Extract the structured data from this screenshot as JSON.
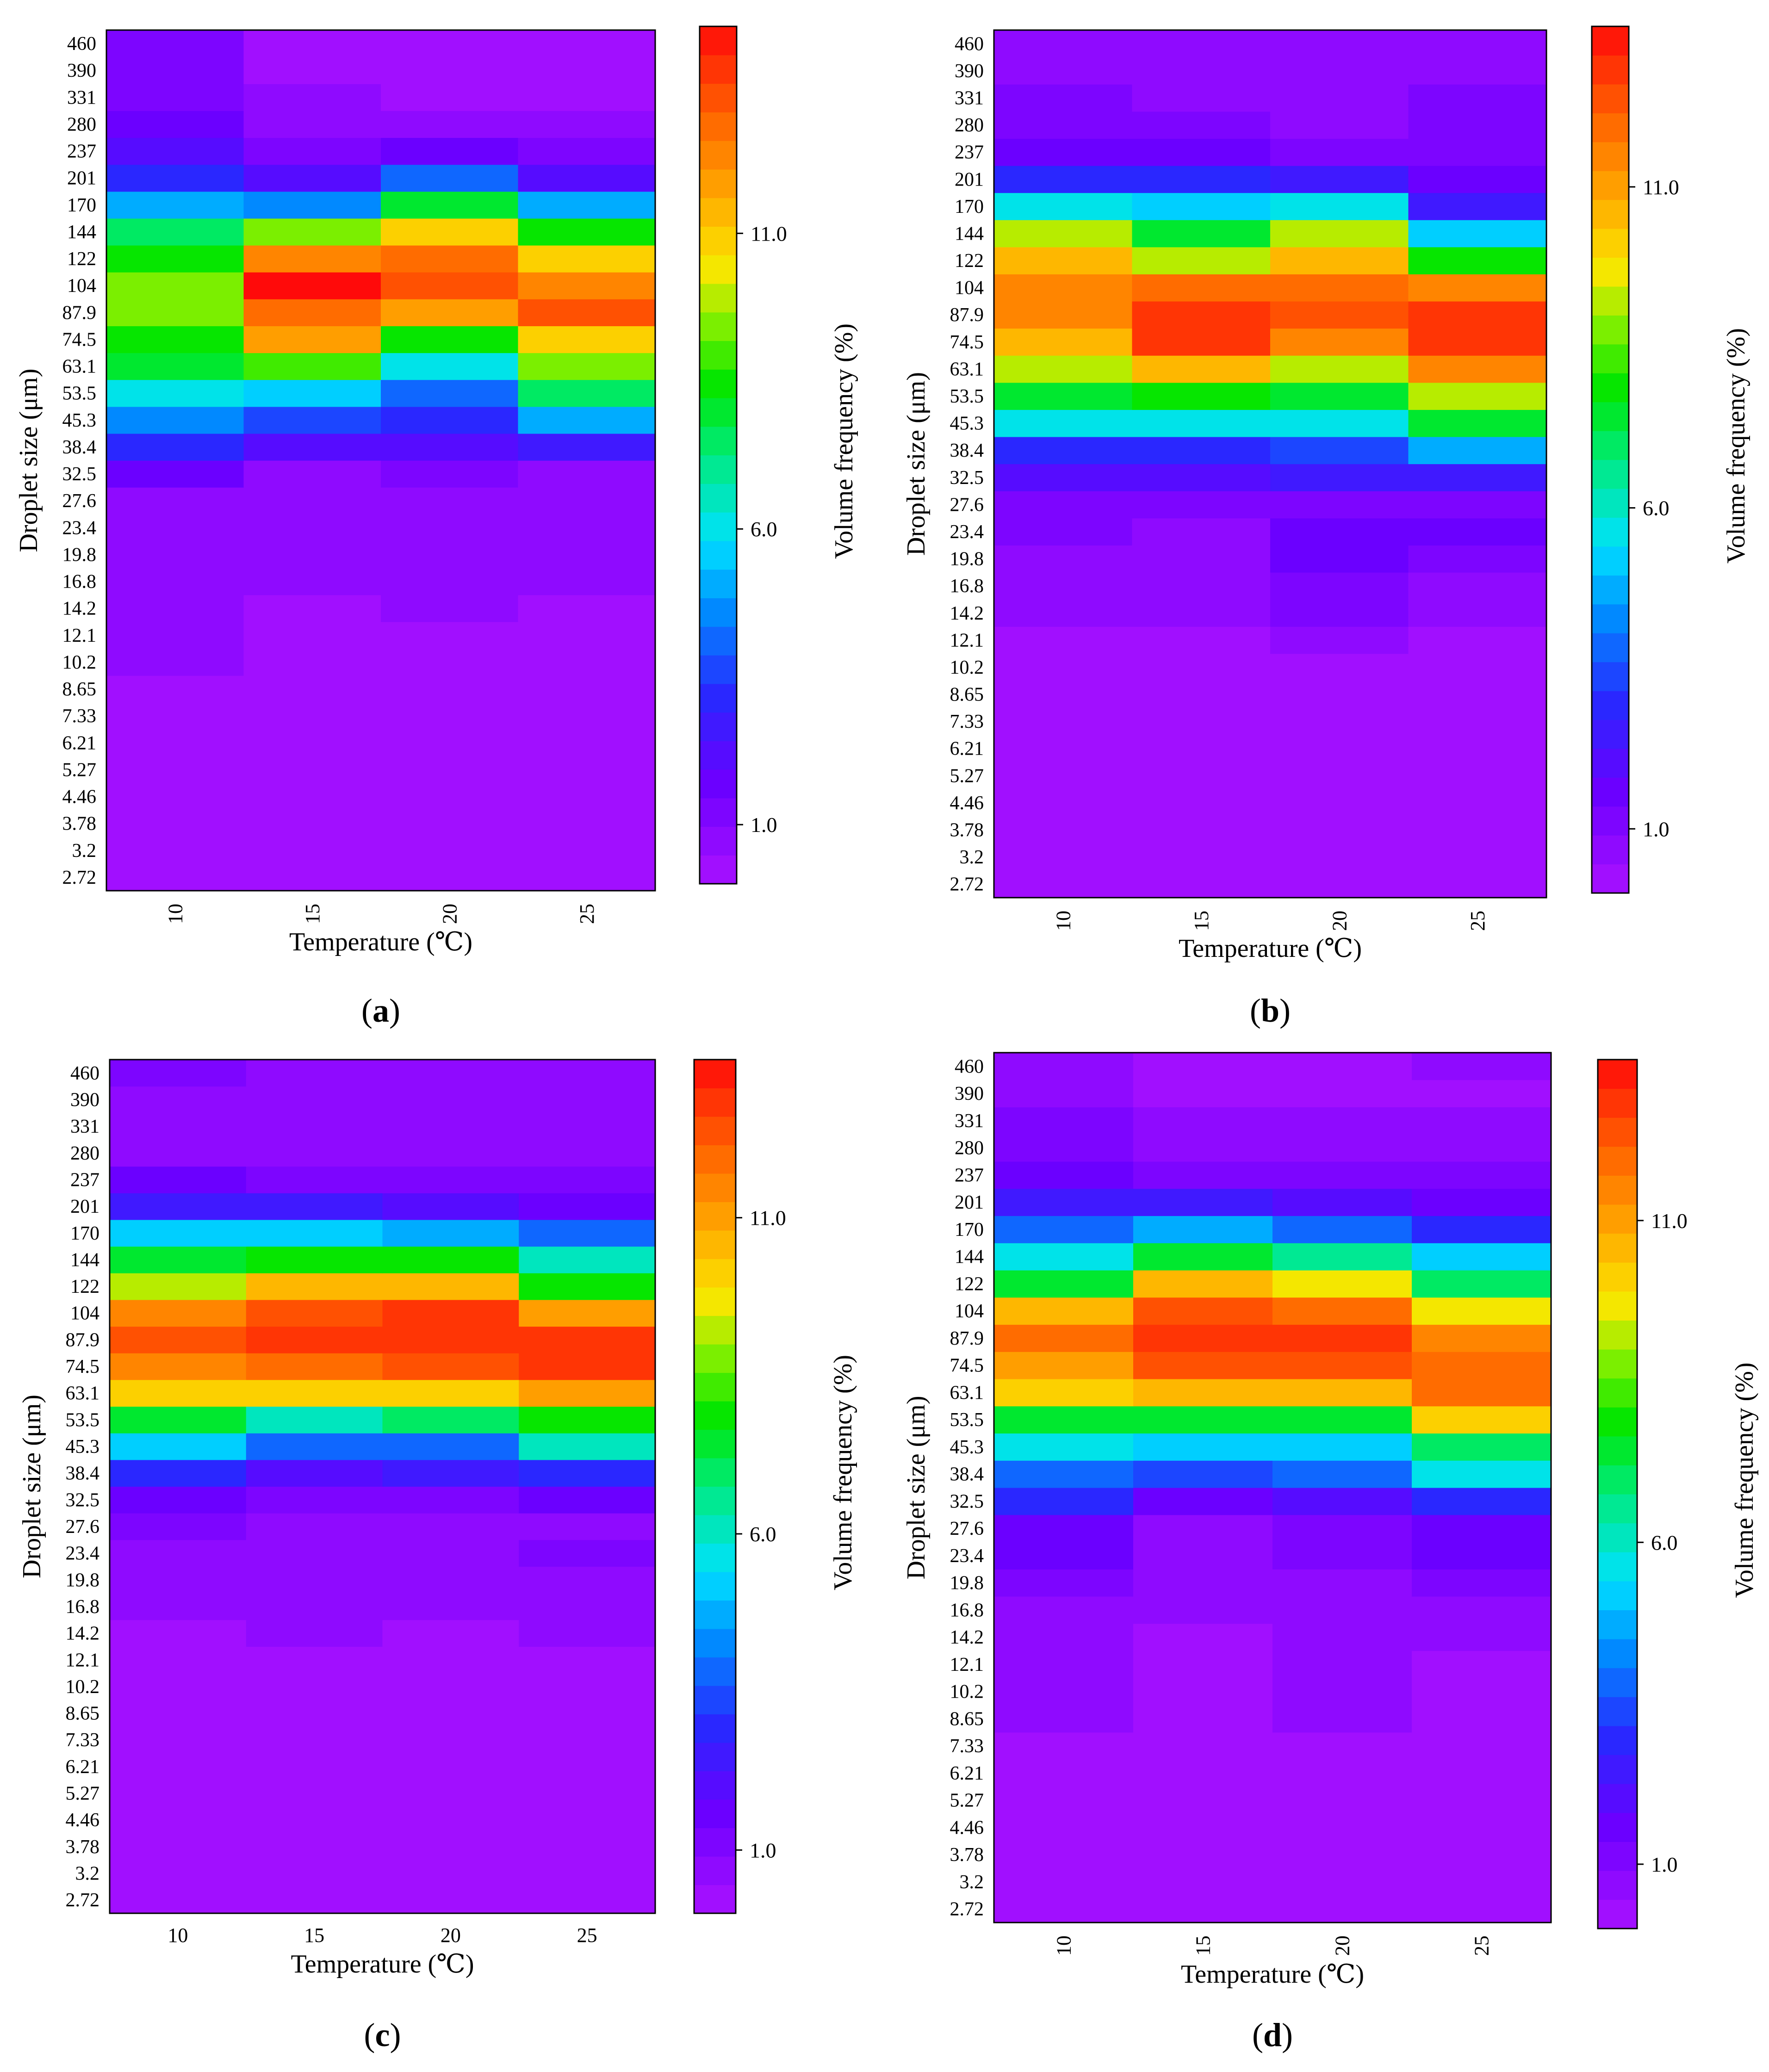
{
  "figure": {
    "panel_labels": [
      "a",
      "b",
      "c",
      "d"
    ]
  },
  "chart_data": [
    {
      "type": "heatmap",
      "label": "a",
      "xlabel": "Temperature (℃)",
      "ylabel": "Droplet size (μm)",
      "colorbar_label": "Volume frequency (%)",
      "colorbar_ticks": [
        1.0,
        6.0,
        11.0
      ],
      "colorbar_ticklabels": [
        "1.0",
        "6.0",
        "11.0"
      ],
      "colorbar_range": [
        0,
        14.5
      ],
      "x_tick_rotated": true,
      "x": [
        "10",
        "15",
        "20",
        "25"
      ],
      "y": [
        "2.72",
        "3.2",
        "3.78",
        "4.46",
        "5.27",
        "6.21",
        "7.33",
        "8.65",
        "10.2",
        "12.1",
        "14.2",
        "16.8",
        "19.8",
        "23.4",
        "27.6",
        "32.5",
        "38.4",
        "45.3",
        "53.5",
        "63.1",
        "74.5",
        "87.9",
        "104",
        "122",
        "144",
        "170",
        "201",
        "237",
        "280",
        "331",
        "390",
        "460"
      ],
      "values": [
        [
          0.2,
          0.2,
          0.2,
          0.2
        ],
        [
          0.2,
          0.2,
          0.2,
          0.2
        ],
        [
          0.2,
          0.2,
          0.2,
          0.2
        ],
        [
          0.2,
          0.2,
          0.2,
          0.2
        ],
        [
          0.2,
          0.2,
          0.2,
          0.2
        ],
        [
          0.2,
          0.2,
          0.2,
          0.2
        ],
        [
          0.2,
          0.2,
          0.2,
          0.2
        ],
        [
          0.2,
          0.2,
          0.2,
          0.2
        ],
        [
          0.5,
          0.2,
          0.2,
          0.2
        ],
        [
          0.5,
          0.2,
          0.2,
          0.2
        ],
        [
          0.5,
          0.2,
          0.5,
          0.2
        ],
        [
          0.5,
          0.5,
          0.5,
          0.5
        ],
        [
          0.8,
          0.5,
          0.5,
          0.5
        ],
        [
          0.8,
          0.5,
          0.5,
          0.8
        ],
        [
          0.8,
          0.5,
          0.8,
          0.5
        ],
        [
          1.5,
          0.8,
          1.0,
          0.8
        ],
        [
          3.0,
          2.0,
          2.0,
          2.5
        ],
        [
          4.5,
          3.8,
          3.0,
          5.0
        ],
        [
          6.0,
          5.5,
          4.0,
          7.5
        ],
        [
          8.0,
          9.0,
          6.0,
          9.5
        ],
        [
          8.5,
          12.0,
          8.5,
          11.0
        ],
        [
          9.5,
          13.0,
          12.0,
          13.5
        ],
        [
          9.5,
          14.5,
          13.5,
          12.5
        ],
        [
          8.5,
          12.5,
          13.0,
          11.0
        ],
        [
          7.5,
          9.5,
          11.0,
          8.5
        ],
        [
          5.0,
          4.5,
          8.0,
          5.0
        ],
        [
          3.0,
          2.0,
          4.0,
          2.0
        ],
        [
          2.0,
          1.0,
          1.5,
          1.2
        ],
        [
          1.5,
          0.8,
          0.8,
          0.8
        ],
        [
          1.2,
          0.5,
          0.2,
          0.2
        ],
        [
          1.2,
          0.2,
          0.2,
          0.2
        ],
        [
          1.2,
          0.2,
          0.2,
          0.2
        ]
      ]
    },
    {
      "type": "heatmap",
      "label": "b",
      "xlabel": "Temperature (℃)",
      "ylabel": "Droplet size (μm)",
      "colorbar_label": "Volume frequency (%)",
      "colorbar_ticks": [
        1.0,
        6.0,
        11.0
      ],
      "colorbar_ticklabels": [
        "1.0",
        "6.0",
        "11.0"
      ],
      "colorbar_range": [
        0,
        13.5
      ],
      "x_tick_rotated": true,
      "x": [
        "10",
        "15",
        "20",
        "25"
      ],
      "y": [
        "2.72",
        "3.2",
        "3.78",
        "4.46",
        "5.27",
        "6.21",
        "7.33",
        "8.65",
        "10.2",
        "12.1",
        "14.2",
        "16.8",
        "19.8",
        "23.4",
        "27.6",
        "32.5",
        "38.4",
        "45.3",
        "53.5",
        "63.1",
        "74.5",
        "87.9",
        "104",
        "122",
        "144",
        "170",
        "201",
        "237",
        "280",
        "331",
        "390",
        "460"
      ],
      "values": [
        [
          0.2,
          0.2,
          0.2,
          0.2
        ],
        [
          0.2,
          0.2,
          0.2,
          0.2
        ],
        [
          0.2,
          0.2,
          0.2,
          0.2
        ],
        [
          0.2,
          0.2,
          0.2,
          0.2
        ],
        [
          0.2,
          0.2,
          0.2,
          0.2
        ],
        [
          0.2,
          0.2,
          0.2,
          0.2
        ],
        [
          0.2,
          0.2,
          0.2,
          0.2
        ],
        [
          0.2,
          0.2,
          0.2,
          0.2
        ],
        [
          0.2,
          0.2,
          0.2,
          0.2
        ],
        [
          0.2,
          0.2,
          0.5,
          0.2
        ],
        [
          0.5,
          0.5,
          1.0,
          0.5
        ],
        [
          0.8,
          0.8,
          1.2,
          0.8
        ],
        [
          0.8,
          0.8,
          1.5,
          1.2
        ],
        [
          1.0,
          0.8,
          1.5,
          1.5
        ],
        [
          1.0,
          1.0,
          1.2,
          1.2
        ],
        [
          2.0,
          2.0,
          2.5,
          2.5
        ],
        [
          3.0,
          3.0,
          3.5,
          4.5
        ],
        [
          5.5,
          5.5,
          5.5,
          7.5
        ],
        [
          7.5,
          8.0,
          7.5,
          9.0
        ],
        [
          9.0,
          10.5,
          9.0,
          11.5
        ],
        [
          10.5,
          13.0,
          11.5,
          13.0
        ],
        [
          11.5,
          13.0,
          12.5,
          13.0
        ],
        [
          11.5,
          12.0,
          12.0,
          11.5
        ],
        [
          10.5,
          9.0,
          10.5,
          8.0
        ],
        [
          9.0,
          7.5,
          9.0,
          5.0
        ],
        [
          5.5,
          5.0,
          5.5,
          2.5
        ],
        [
          3.0,
          3.0,
          2.5,
          1.5
        ],
        [
          1.5,
          1.5,
          1.2,
          1.2
        ],
        [
          1.2,
          1.2,
          0.8,
          1.0
        ],
        [
          1.0,
          0.5,
          0.5,
          1.0
        ],
        [
          0.8,
          0.5,
          0.5,
          0.5
        ],
        [
          0.8,
          0.5,
          0.5,
          0.5
        ]
      ]
    },
    {
      "type": "heatmap",
      "label": "c",
      "xlabel": "Temperature (℃)",
      "ylabel": "Droplet size (μm)",
      "colorbar_label": "Volume frequency (%)",
      "colorbar_ticks": [
        1.0,
        6.0,
        11.0
      ],
      "colorbar_ticklabels": [
        "1.0",
        "6.0",
        "11.0"
      ],
      "colorbar_range": [
        0,
        13.5
      ],
      "x_tick_rotated": false,
      "x": [
        "10",
        "15",
        "20",
        "25"
      ],
      "y": [
        "2.72",
        "3.2",
        "3.78",
        "4.46",
        "5.27",
        "6.21",
        "7.33",
        "8.65",
        "10.2",
        "12.1",
        "14.2",
        "16.8",
        "19.8",
        "23.4",
        "27.6",
        "32.5",
        "38.4",
        "45.3",
        "53.5",
        "63.1",
        "74.5",
        "87.9",
        "104",
        "122",
        "144",
        "170",
        "201",
        "237",
        "280",
        "331",
        "390",
        "460"
      ],
      "values": [
        [
          0.2,
          0.2,
          0.2,
          0.2
        ],
        [
          0.2,
          0.2,
          0.2,
          0.2
        ],
        [
          0.2,
          0.2,
          0.2,
          0.2
        ],
        [
          0.2,
          0.2,
          0.2,
          0.2
        ],
        [
          0.2,
          0.2,
          0.2,
          0.2
        ],
        [
          0.2,
          0.2,
          0.2,
          0.2
        ],
        [
          0.2,
          0.2,
          0.2,
          0.2
        ],
        [
          0.2,
          0.2,
          0.2,
          0.2
        ],
        [
          0.2,
          0.2,
          0.2,
          0.2
        ],
        [
          0.2,
          0.2,
          0.2,
          0.2
        ],
        [
          0.2,
          0.5,
          0.2,
          0.5
        ],
        [
          0.5,
          0.5,
          0.5,
          0.5
        ],
        [
          0.5,
          0.5,
          0.5,
          0.8
        ],
        [
          0.8,
          0.8,
          0.8,
          1.2
        ],
        [
          1.0,
          0.8,
          0.8,
          0.8
        ],
        [
          1.5,
          1.0,
          1.2,
          1.5
        ],
        [
          3.0,
          2.0,
          2.5,
          3.0
        ],
        [
          5.0,
          4.0,
          4.0,
          6.0
        ],
        [
          7.5,
          6.0,
          7.0,
          8.0
        ],
        [
          10.0,
          10.0,
          10.0,
          11.0
        ],
        [
          11.5,
          12.0,
          12.5,
          13.0
        ],
        [
          12.5,
          13.0,
          13.0,
          13.0
        ],
        [
          11.5,
          12.5,
          13.0,
          11.0
        ],
        [
          9.0,
          10.5,
          10.5,
          8.0
        ],
        [
          7.5,
          8.0,
          8.0,
          6.0
        ],
        [
          5.0,
          5.0,
          4.5,
          4.0
        ],
        [
          2.5,
          2.5,
          2.0,
          1.5
        ],
        [
          1.5,
          1.0,
          1.0,
          1.0
        ],
        [
          0.8,
          0.8,
          0.5,
          0.8
        ],
        [
          0.8,
          0.5,
          0.5,
          0.5
        ],
        [
          0.8,
          0.5,
          0.5,
          0.5
        ],
        [
          1.0,
          0.5,
          0.5,
          0.5
        ]
      ]
    },
    {
      "type": "heatmap",
      "label": "d",
      "xlabel": "Temperature (℃)",
      "ylabel": "Droplet size (μm)",
      "colorbar_label": "Volume frequency (%)",
      "colorbar_ticks": [
        1.0,
        6.0,
        11.0
      ],
      "colorbar_ticklabels": [
        "1.0",
        "6.0",
        "11.0"
      ],
      "colorbar_range": [
        0,
        13.5
      ],
      "x_tick_rotated": true,
      "x": [
        "10",
        "15",
        "20",
        "25"
      ],
      "y": [
        "2.72",
        "3.2",
        "3.78",
        "4.46",
        "5.27",
        "6.21",
        "7.33",
        "8.65",
        "10.2",
        "12.1",
        "14.2",
        "16.8",
        "19.8",
        "23.4",
        "27.6",
        "32.5",
        "38.4",
        "45.3",
        "53.5",
        "63.1",
        "74.5",
        "87.9",
        "104",
        "122",
        "144",
        "170",
        "201",
        "237",
        "280",
        "331",
        "390",
        "460"
      ],
      "values": [
        [
          0.2,
          0.2,
          0.2,
          0.2
        ],
        [
          0.2,
          0.2,
          0.2,
          0.2
        ],
        [
          0.2,
          0.2,
          0.2,
          0.2
        ],
        [
          0.2,
          0.2,
          0.2,
          0.2
        ],
        [
          0.2,
          0.2,
          0.2,
          0.2
        ],
        [
          0.2,
          0.2,
          0.2,
          0.2
        ],
        [
          0.2,
          0.2,
          0.2,
          0.2
        ],
        [
          0.5,
          0.2,
          0.5,
          0.2
        ],
        [
          0.5,
          0.2,
          0.5,
          0.2
        ],
        [
          0.5,
          0.2,
          0.5,
          0.2
        ],
        [
          0.8,
          0.2,
          0.5,
          0.5
        ],
        [
          0.8,
          0.5,
          0.5,
          0.5
        ],
        [
          1.0,
          0.8,
          0.8,
          1.2
        ],
        [
          1.5,
          0.8,
          1.0,
          1.5
        ],
        [
          1.5,
          0.8,
          1.0,
          1.5
        ],
        [
          3.0,
          1.5,
          2.0,
          3.0
        ],
        [
          4.0,
          3.5,
          4.0,
          5.5
        ],
        [
          5.5,
          5.0,
          5.0,
          7.0
        ],
        [
          7.5,
          7.5,
          7.5,
          10.0
        ],
        [
          10.0,
          10.5,
          10.5,
          12.0
        ],
        [
          11.0,
          12.5,
          12.5,
          12.0
        ],
        [
          12.0,
          13.0,
          13.0,
          11.5
        ],
        [
          10.5,
          12.5,
          12.0,
          9.5
        ],
        [
          7.5,
          10.5,
          9.5,
          7.0
        ],
        [
          5.5,
          7.5,
          6.5,
          5.0
        ],
        [
          4.0,
          4.5,
          4.0,
          3.0
        ],
        [
          2.5,
          2.5,
          2.0,
          1.5
        ],
        [
          1.5,
          1.0,
          1.0,
          1.0
        ],
        [
          1.0,
          0.8,
          0.8,
          0.5
        ],
        [
          1.0,
          0.5,
          0.5,
          0.5
        ],
        [
          0.8,
          0.2,
          0.2,
          0.2
        ],
        [
          0.5,
          0.2,
          0.2,
          0.5
        ]
      ]
    }
  ]
}
